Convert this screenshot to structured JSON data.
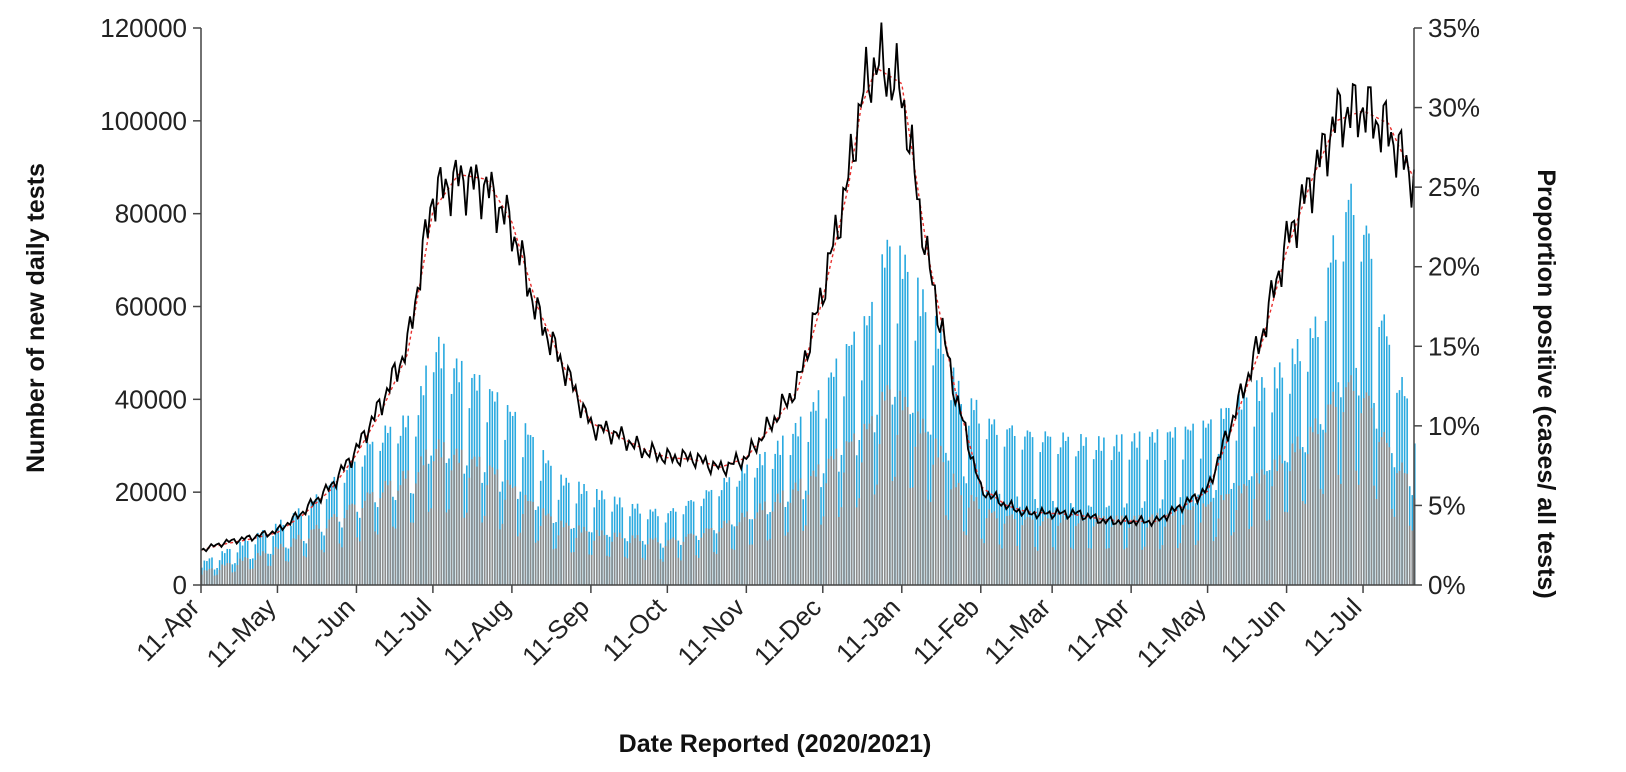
{
  "chart_data": {
    "type": "bar",
    "xlabel": "Date Reported (2020/2021)",
    "ylabel_left": "Number of new daily tests",
    "ylabel_right": "Proportion positive (cases/ all tests)",
    "x_start": "2020-04-11",
    "x_end": "2021-07-31",
    "x_ticks": [
      {
        "date": "2020-04-11",
        "label": "11-Apr"
      },
      {
        "date": "2020-05-11",
        "label": "11-May"
      },
      {
        "date": "2020-06-11",
        "label": "11-Jun"
      },
      {
        "date": "2020-07-11",
        "label": "11-Jul"
      },
      {
        "date": "2020-08-11",
        "label": "11-Aug"
      },
      {
        "date": "2020-09-11",
        "label": "11-Sep"
      },
      {
        "date": "2020-10-11",
        "label": "11-Oct"
      },
      {
        "date": "2020-11-11",
        "label": "11-Nov"
      },
      {
        "date": "2020-12-11",
        "label": "11-Dec"
      },
      {
        "date": "2021-01-11",
        "label": "11-Jan"
      },
      {
        "date": "2021-02-11",
        "label": "11-Feb"
      },
      {
        "date": "2021-03-11",
        "label": "11-Mar"
      },
      {
        "date": "2021-04-11",
        "label": "11-Apr"
      },
      {
        "date": "2021-05-11",
        "label": "11-May"
      },
      {
        "date": "2021-06-11",
        "label": "11-Jun"
      },
      {
        "date": "2021-07-11",
        "label": "11-Jul"
      }
    ],
    "y_left": {
      "ylim": [
        0,
        120000
      ],
      "ticks": [
        {
          "value": 0,
          "label": "0"
        },
        {
          "value": 20000,
          "label": "20000"
        },
        {
          "value": 40000,
          "label": "40000"
        },
        {
          "value": 60000,
          "label": "60000"
        },
        {
          "value": 80000,
          "label": "80000"
        },
        {
          "value": 100000,
          "label": "100000"
        },
        {
          "value": 120000,
          "label": "120000"
        }
      ]
    },
    "y_right": {
      "ylim": [
        0,
        0.35
      ],
      "ticks": [
        {
          "value": 0,
          "label": "0%"
        },
        {
          "value": 0.05,
          "label": "5%"
        },
        {
          "value": 0.1,
          "label": "10%"
        },
        {
          "value": 0.15,
          "label": "15%"
        },
        {
          "value": 0.2,
          "label": "20%"
        },
        {
          "value": 0.25,
          "label": "25%"
        },
        {
          "value": 0.3,
          "label": "30%"
        },
        {
          "value": 0.35,
          "label": "35%"
        }
      ]
    },
    "grid": false,
    "legend": "none",
    "series": [
      {
        "type": "bar",
        "axis": "left",
        "color": "#29a9df",
        "x": [
          "2020-04-11",
          "2020-04-25",
          "2020-05-09",
          "2020-05-23",
          "2020-06-06",
          "2020-06-20",
          "2020-07-04",
          "2020-07-11",
          "2020-07-18",
          "2020-08-01",
          "2020-08-15",
          "2020-08-29",
          "2020-09-12",
          "2020-09-26",
          "2020-10-10",
          "2020-10-24",
          "2020-11-07",
          "2020-11-21",
          "2020-12-05",
          "2020-12-19",
          "2020-12-29",
          "2021-01-05",
          "2021-01-12",
          "2021-01-19",
          "2021-01-26",
          "2021-02-02",
          "2021-02-16",
          "2021-03-02",
          "2021-03-16",
          "2021-03-30",
          "2021-04-13",
          "2021-04-27",
          "2021-05-11",
          "2021-05-25",
          "2021-06-08",
          "2021-06-22",
          "2021-06-29",
          "2021-07-06",
          "2021-07-13",
          "2021-07-20",
          "2021-07-31"
        ],
        "values": [
          5000,
          9000,
          13000,
          18000,
          26000,
          34000,
          38000,
          55000,
          50000,
          44000,
          36000,
          24000,
          21000,
          18000,
          16000,
          20000,
          25000,
          30000,
          38000,
          52000,
          60000,
          76000,
          72000,
          64000,
          56000,
          44000,
          36000,
          34000,
          33000,
          32000,
          33000,
          34000,
          36000,
          42000,
          48000,
          58000,
          76000,
          88000,
          78000,
          56000,
          36000
        ]
      },
      {
        "type": "bar",
        "axis": "left",
        "color": "#8c8c8c",
        "x": [
          "2020-04-11",
          "2020-04-25",
          "2020-05-09",
          "2020-05-23",
          "2020-06-06",
          "2020-06-20",
          "2020-07-04",
          "2020-07-11",
          "2020-07-18",
          "2020-08-01",
          "2020-08-15",
          "2020-08-29",
          "2020-09-12",
          "2020-09-26",
          "2020-10-10",
          "2020-10-24",
          "2020-11-07",
          "2020-11-21",
          "2020-12-05",
          "2020-12-19",
          "2020-12-29",
          "2021-01-05",
          "2021-01-12",
          "2021-01-19",
          "2021-01-26",
          "2021-02-02",
          "2021-02-16",
          "2021-03-02",
          "2021-03-16",
          "2021-03-30",
          "2021-04-13",
          "2021-04-27",
          "2021-05-11",
          "2021-05-25",
          "2021-06-08",
          "2021-06-22",
          "2021-06-29",
          "2021-07-06",
          "2021-07-13",
          "2021-07-20",
          "2021-07-31"
        ],
        "values": [
          3000,
          5500,
          8000,
          12000,
          17000,
          22000,
          26000,
          32000,
          30000,
          27000,
          20000,
          14000,
          12000,
          11000,
          10000,
          12000,
          15000,
          19000,
          24000,
          31000,
          36000,
          44000,
          41000,
          36000,
          30000,
          22000,
          16000,
          15000,
          15000,
          15000,
          15000,
          16000,
          18000,
          22000,
          28000,
          36000,
          42000,
          46000,
          42000,
          32000,
          22000
        ]
      },
      {
        "type": "line",
        "axis": "right",
        "color": "#000000",
        "x": [
          "2020-04-11",
          "2020-04-21",
          "2020-05-01",
          "2020-05-11",
          "2020-05-21",
          "2020-06-01",
          "2020-06-11",
          "2020-06-21",
          "2020-07-01",
          "2020-07-11",
          "2020-07-21",
          "2020-08-01",
          "2020-08-11",
          "2020-08-21",
          "2020-09-01",
          "2020-09-11",
          "2020-09-21",
          "2020-10-01",
          "2020-10-11",
          "2020-10-21",
          "2020-11-01",
          "2020-11-11",
          "2020-11-21",
          "2020-12-01",
          "2020-12-11",
          "2020-12-21",
          "2020-12-26",
          "2021-01-01",
          "2021-01-11",
          "2021-01-21",
          "2021-02-01",
          "2021-02-11",
          "2021-02-21",
          "2021-03-01",
          "2021-03-11",
          "2021-03-21",
          "2021-04-01",
          "2021-04-11",
          "2021-04-21",
          "2021-05-01",
          "2021-05-11",
          "2021-05-21",
          "2021-06-01",
          "2021-06-11",
          "2021-06-21",
          "2021-07-01",
          "2021-07-11",
          "2021-07-21",
          "2021-07-31"
        ],
        "values": [
          0.022,
          0.027,
          0.03,
          0.034,
          0.046,
          0.062,
          0.085,
          0.115,
          0.15,
          0.245,
          0.255,
          0.25,
          0.225,
          0.17,
          0.135,
          0.1,
          0.095,
          0.085,
          0.08,
          0.08,
          0.073,
          0.08,
          0.102,
          0.125,
          0.185,
          0.255,
          0.305,
          0.33,
          0.31,
          0.205,
          0.12,
          0.06,
          0.05,
          0.045,
          0.045,
          0.045,
          0.04,
          0.04,
          0.04,
          0.05,
          0.06,
          0.105,
          0.155,
          0.215,
          0.255,
          0.295,
          0.3,
          0.285,
          0.255
        ]
      },
      {
        "type": "line",
        "axis": "right",
        "color": "#e8312f",
        "style": "dotted",
        "x": [
          "2020-04-11",
          "2020-04-21",
          "2020-05-01",
          "2020-05-11",
          "2020-05-21",
          "2020-06-01",
          "2020-06-11",
          "2020-06-21",
          "2020-07-01",
          "2020-07-11",
          "2020-07-21",
          "2020-08-01",
          "2020-08-11",
          "2020-08-21",
          "2020-09-01",
          "2020-09-11",
          "2020-09-21",
          "2020-10-01",
          "2020-10-11",
          "2020-10-21",
          "2020-11-01",
          "2020-11-11",
          "2020-11-21",
          "2020-12-01",
          "2020-12-11",
          "2020-12-21",
          "2020-12-26",
          "2021-01-01",
          "2021-01-11",
          "2021-01-21",
          "2021-02-01",
          "2021-02-11",
          "2021-02-21",
          "2021-03-01",
          "2021-03-11",
          "2021-03-21",
          "2021-04-01",
          "2021-04-11",
          "2021-04-21",
          "2021-05-01",
          "2021-05-11",
          "2021-05-21",
          "2021-06-01",
          "2021-06-11",
          "2021-06-21",
          "2021-07-01",
          "2021-07-11",
          "2021-07-21",
          "2021-07-31"
        ],
        "values": [
          0.022,
          0.026,
          0.029,
          0.033,
          0.044,
          0.06,
          0.082,
          0.11,
          0.145,
          0.235,
          0.258,
          0.255,
          0.228,
          0.175,
          0.135,
          0.102,
          0.094,
          0.086,
          0.08,
          0.079,
          0.074,
          0.08,
          0.1,
          0.122,
          0.18,
          0.25,
          0.3,
          0.325,
          0.315,
          0.21,
          0.122,
          0.062,
          0.05,
          0.046,
          0.045,
          0.044,
          0.041,
          0.04,
          0.04,
          0.049,
          0.059,
          0.1,
          0.15,
          0.21,
          0.255,
          0.292,
          0.298,
          0.29,
          0.255
        ]
      }
    ]
  }
}
